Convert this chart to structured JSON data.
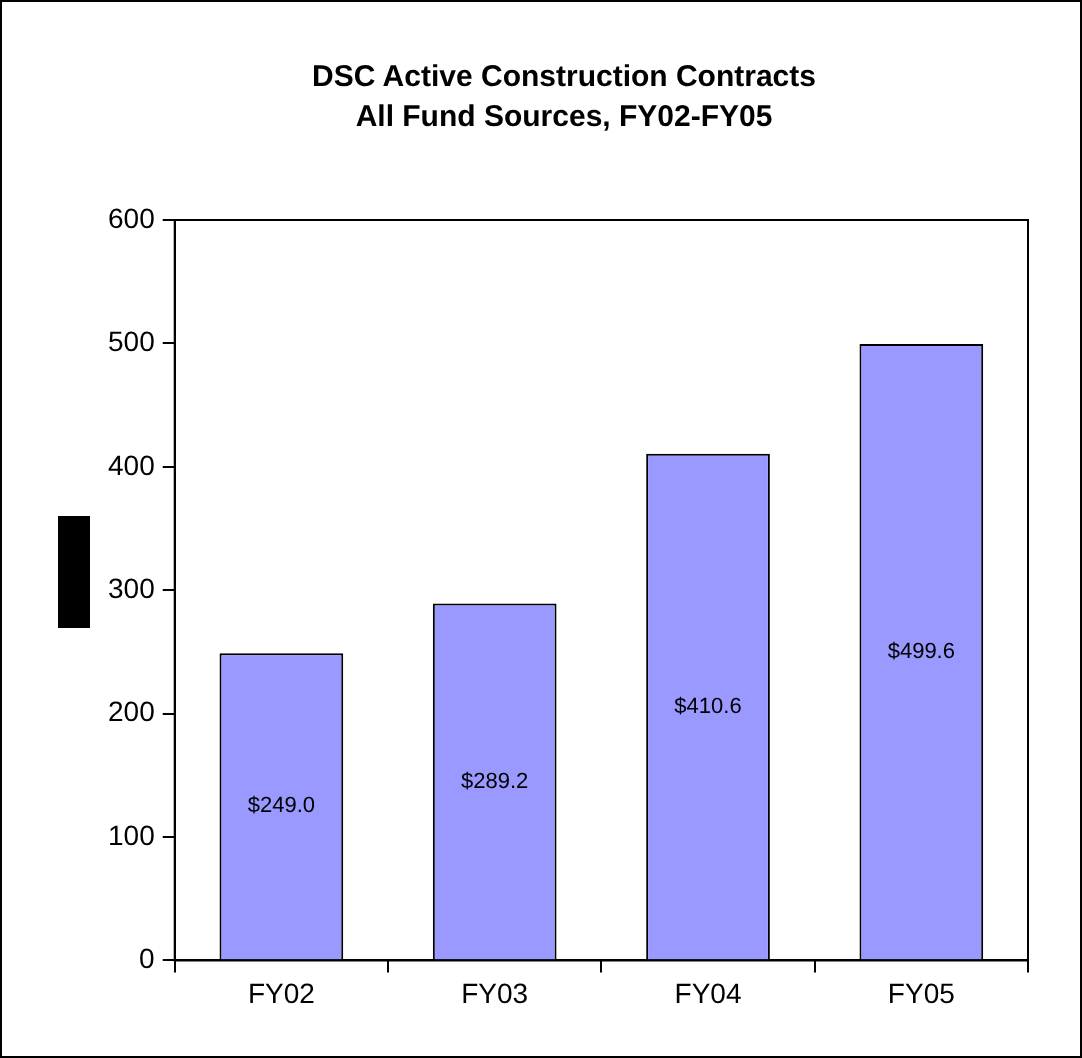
{
  "chart_data": {
    "type": "bar",
    "title": "DSC Active Construction Contracts",
    "subtitle": "All Fund Sources, FY02-FY05",
    "categories": [
      "FY02",
      "FY03",
      "FY04",
      "FY05"
    ],
    "values": [
      249.0,
      289.2,
      410.6,
      499.6
    ],
    "value_labels": [
      "$249.0",
      "$289.2",
      "$410.6",
      "$499.6"
    ],
    "color": "#9999ff",
    "ylim": [
      0,
      600
    ],
    "yticks": [
      0,
      100,
      200,
      300,
      400,
      500,
      600
    ],
    "grid": false,
    "legend": false
  }
}
